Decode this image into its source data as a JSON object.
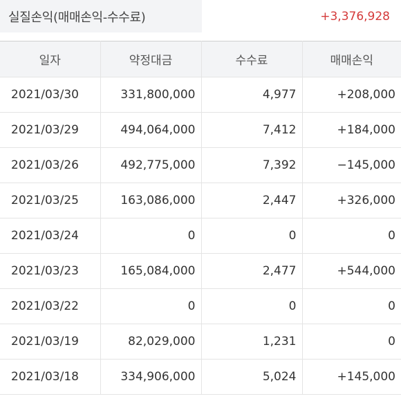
{
  "summary": {
    "label": "실질손익(매매손익-수수료)",
    "value": "+3,376,928"
  },
  "columns": [
    "일자",
    "약정대금",
    "수수료",
    "매매손익"
  ],
  "rows": [
    {
      "date": "2021/03/30",
      "amount": "331,800,000",
      "fee": "4,977",
      "pnl": "+208,000",
      "sign": "pos"
    },
    {
      "date": "2021/03/29",
      "amount": "494,064,000",
      "fee": "7,412",
      "pnl": "+184,000",
      "sign": "pos"
    },
    {
      "date": "2021/03/26",
      "amount": "492,775,000",
      "fee": "7,392",
      "pnl": "−145,000",
      "sign": "neg"
    },
    {
      "date": "2021/03/25",
      "amount": "163,086,000",
      "fee": "2,447",
      "pnl": "+326,000",
      "sign": "pos"
    },
    {
      "date": "2021/03/24",
      "amount": "0",
      "fee": "0",
      "pnl": "0",
      "sign": "zero"
    },
    {
      "date": "2021/03/23",
      "amount": "165,084,000",
      "fee": "2,477",
      "pnl": "+544,000",
      "sign": "pos"
    },
    {
      "date": "2021/03/22",
      "amount": "0",
      "fee": "0",
      "pnl": "0",
      "sign": "zero"
    },
    {
      "date": "2021/03/19",
      "amount": "82,029,000",
      "fee": "1,231",
      "pnl": "0",
      "sign": "zero"
    },
    {
      "date": "2021/03/18",
      "amount": "334,906,000",
      "fee": "5,024",
      "pnl": "+145,000",
      "sign": "pos"
    }
  ],
  "colors": {
    "positive": "#d43a3a",
    "negative": "#2b5fc4",
    "header_bg": "#f3f4f6"
  }
}
